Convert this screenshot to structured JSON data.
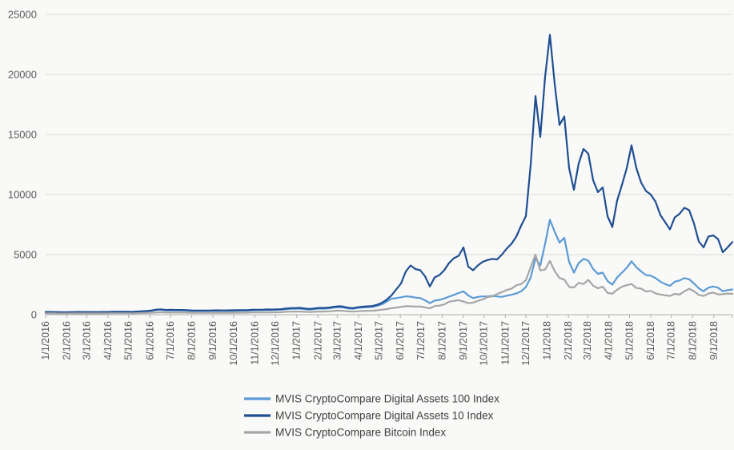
{
  "chart_data": {
    "type": "line",
    "title": "",
    "x_start_date": "2016-01-01",
    "interval_days": 7,
    "x_tick_labels": [
      "1/1/2016",
      "2/1/2016",
      "3/1/2016",
      "4/1/2016",
      "5/1/2016",
      "6/1/2016",
      "7/1/2016",
      "8/1/2016",
      "9/1/2016",
      "10/1/2016",
      "11/1/2016",
      "12/1/2016",
      "1/1/2017",
      "2/1/2017",
      "3/1/2017",
      "4/1/2017",
      "5/1/2017",
      "6/1/2017",
      "7/1/2017",
      "8/1/2017",
      "9/1/2017",
      "10/1/2017",
      "11/1/2017",
      "12/1/2017",
      "1/1/2018",
      "2/1/2018",
      "3/1/2018",
      "4/1/2018",
      "5/1/2018",
      "6/1/2018",
      "7/1/2018",
      "8/1/2018",
      "9/1/2018"
    ],
    "ylim": [
      0,
      25000
    ],
    "y_tick_step": 5000,
    "y_tick_labels": [
      "0",
      "5000",
      "10000",
      "15000",
      "20000",
      "25000"
    ],
    "grid": true,
    "legend_position": "bottom",
    "series": [
      {
        "name": "MVIS CryptoCompare Digital Assets 100 Index",
        "color": "#5B9BD5",
        "values": [
          205,
          210,
          203,
          190,
          185,
          191,
          200,
          210,
          204,
          204,
          202,
          204,
          207,
          210,
          218,
          222,
          220,
          218,
          216,
          236,
          260,
          282,
          312,
          378,
          404,
          352,
          365,
          356,
          352,
          350,
          326,
          308,
          317,
          310,
          313,
          324,
          326,
          322,
          324,
          329,
          336,
          340,
          345,
          368,
          374,
          376,
          390,
          385,
          401,
          412,
          458,
          484,
          494,
          505,
          462,
          430,
          466,
          505,
          500,
          527,
          583,
          622,
          597,
          515,
          490,
          556,
          598,
          617,
          643,
          728,
          862,
          1080,
          1330,
          1380,
          1450,
          1530,
          1500,
          1420,
          1380,
          1200,
          960,
          1180,
          1230,
          1350,
          1500,
          1650,
          1800,
          1950,
          1600,
          1380,
          1480,
          1520,
          1520,
          1560,
          1520,
          1480,
          1580,
          1660,
          1760,
          1950,
          2300,
          3100,
          4700,
          4100,
          5900,
          7900,
          6900,
          6000,
          6400,
          4400,
          3500,
          4300,
          4650,
          4500,
          3800,
          3400,
          3500,
          2800,
          2500,
          3100,
          3500,
          3900,
          4450,
          3950,
          3600,
          3300,
          3250,
          3050,
          2750,
          2550,
          2400,
          2750,
          2850,
          3050,
          2950,
          2600,
          2200,
          1950,
          2250,
          2350,
          2250,
          1950,
          2050,
          2100
        ]
      },
      {
        "name": "MVIS CryptoCompare Digital Assets 10 Index",
        "color": "#1F4E91",
        "values": [
          225,
          230,
          222,
          205,
          200,
          207,
          218,
          228,
          222,
          222,
          220,
          222,
          225,
          228,
          238,
          242,
          240,
          238,
          236,
          258,
          285,
          310,
          345,
          420,
          450,
          390,
          405,
          395,
          390,
          388,
          360,
          340,
          350,
          342,
          346,
          358,
          360,
          356,
          358,
          364,
          372,
          376,
          382,
          408,
          414,
          416,
          432,
          426,
          444,
          456,
          510,
          540,
          552,
          565,
          515,
          478,
          520,
          565,
          560,
          590,
          655,
          700,
          672,
          575,
          545,
          620,
          668,
          690,
          720,
          820,
          980,
          1250,
          1600,
          2100,
          2600,
          3600,
          4100,
          3800,
          3700,
          3200,
          2350,
          3100,
          3300,
          3700,
          4300,
          4700,
          4900,
          5600,
          4000,
          3700,
          4100,
          4400,
          4550,
          4650,
          4600,
          5000,
          5500,
          5900,
          6500,
          7400,
          8200,
          12500,
          18200,
          14800,
          19800,
          23300,
          19200,
          15800,
          16500,
          12200,
          10400,
          12600,
          13800,
          13400,
          11200,
          10200,
          10600,
          8200,
          7300,
          9500,
          10800,
          12200,
          14100,
          12200,
          11000,
          10300,
          10000,
          9400,
          8300,
          7700,
          7100,
          8100,
          8400,
          8900,
          8700,
          7600,
          6100,
          5600,
          6500,
          6600,
          6300,
          5200,
          5600,
          6050
        ]
      },
      {
        "name": "MVIS CryptoCompare Bitcoin Index",
        "color": "#A6A6A6",
        "values": [
          113,
          117,
          113,
          102,
          98,
          102,
          110,
          115,
          109,
          109,
          108,
          109,
          110,
          112,
          118,
          120,
          118,
          117,
          116,
          128,
          140,
          150,
          163,
          182,
          197,
          174,
          179,
          174,
          173,
          172,
          160,
          150,
          155,
          151,
          153,
          159,
          160,
          158,
          159,
          162,
          166,
          168,
          171,
          184,
          187,
          188,
          196,
          193,
          202,
          208,
          237,
          252,
          258,
          263,
          237,
          218,
          242,
          266,
          263,
          279,
          313,
          337,
          323,
          271,
          254,
          289,
          310,
          318,
          329,
          368,
          416,
          460,
          539,
          592,
          644,
          710,
          697,
          671,
          671,
          613,
          526,
          723,
          755,
          855,
          1078,
          1144,
          1210,
          1091,
          960,
          999,
          1157,
          1262,
          1473,
          1512,
          1723,
          1880,
          2051,
          2157,
          2446,
          2550,
          2870,
          3950,
          4997,
          3682,
          3761,
          4471,
          3629,
          3051,
          2919,
          2314,
          2262,
          2656,
          2551,
          2893,
          2420,
          2196,
          2341,
          1815,
          1749,
          2078,
          2328,
          2459,
          2551,
          2222,
          2170,
          1933,
          1986,
          1775,
          1683,
          1604,
          1560,
          1736,
          1670,
          1946,
          2157,
          1959,
          1644,
          1552,
          1762,
          1841,
          1696,
          1710,
          1762,
          1736
        ]
      }
    ],
    "colors": {
      "background": "#F9F9F8",
      "gridline": "#D9D9D9",
      "axis_line": "#ADADAD",
      "tick_label": "#595959",
      "legend_text": "#3F3F3F"
    }
  }
}
